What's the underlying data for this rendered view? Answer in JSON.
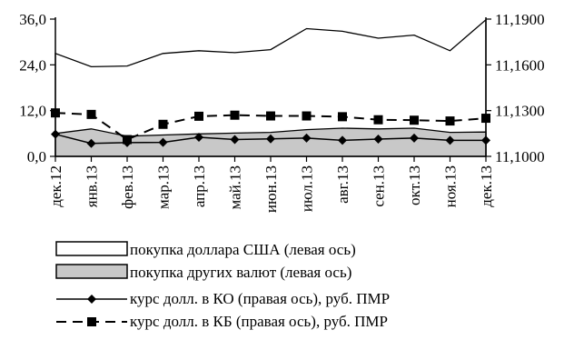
{
  "chart_data": {
    "type": "area",
    "categories": [
      "дек.12",
      "янв.13",
      "фев.13",
      "мар.13",
      "апр.13",
      "май.13",
      "июн.13",
      "июл.13",
      "авг.13",
      "сен.13",
      "окт.13",
      "ноя.13",
      "дек.13"
    ],
    "left_axis": {
      "min": 0,
      "max": 36,
      "ticks": [
        0,
        12,
        24,
        36
      ],
      "tick_labels": [
        "0,0",
        "12,0",
        "24,0",
        "36,0"
      ]
    },
    "right_axis": {
      "min": 11.1,
      "max": 11.19,
      "ticks": [
        11.1,
        11.13,
        11.16,
        11.19
      ],
      "tick_labels": [
        "11,1000",
        "11,1300",
        "11,1600",
        "11,1900"
      ]
    },
    "series": [
      {
        "name": "покупка доллара США (левая ось)",
        "axis": "left",
        "style": "area-white",
        "values": [
          27.0,
          23.5,
          23.7,
          27.0,
          27.7,
          27.2,
          28.0,
          33.5,
          32.8,
          31.0,
          31.8,
          27.7,
          35.8
        ]
      },
      {
        "name": "покупка других валют (левая ось)",
        "axis": "left",
        "style": "area-gray",
        "values": [
          6.0,
          7.2,
          5.3,
          5.6,
          5.9,
          6.1,
          6.3,
          7.0,
          7.4,
          7.2,
          7.4,
          6.3,
          6.4
        ]
      },
      {
        "name": "курс долл. в КО (правая ось), руб. ПМР",
        "axis": "right",
        "style": "line-diamond",
        "values": [
          11.1145,
          11.1085,
          11.109,
          11.1092,
          11.1125,
          11.111,
          11.1115,
          11.112,
          11.1105,
          11.1113,
          11.112,
          11.1105,
          11.1105
        ]
      },
      {
        "name": "курс долл. в КБ (правая ось), руб. ПМР",
        "axis": "right",
        "style": "line-square-dashed",
        "values": [
          11.1285,
          11.1275,
          11.111,
          11.121,
          11.1263,
          11.127,
          11.1265,
          11.1265,
          11.126,
          11.124,
          11.1237,
          11.1232,
          11.125
        ]
      }
    ]
  }
}
